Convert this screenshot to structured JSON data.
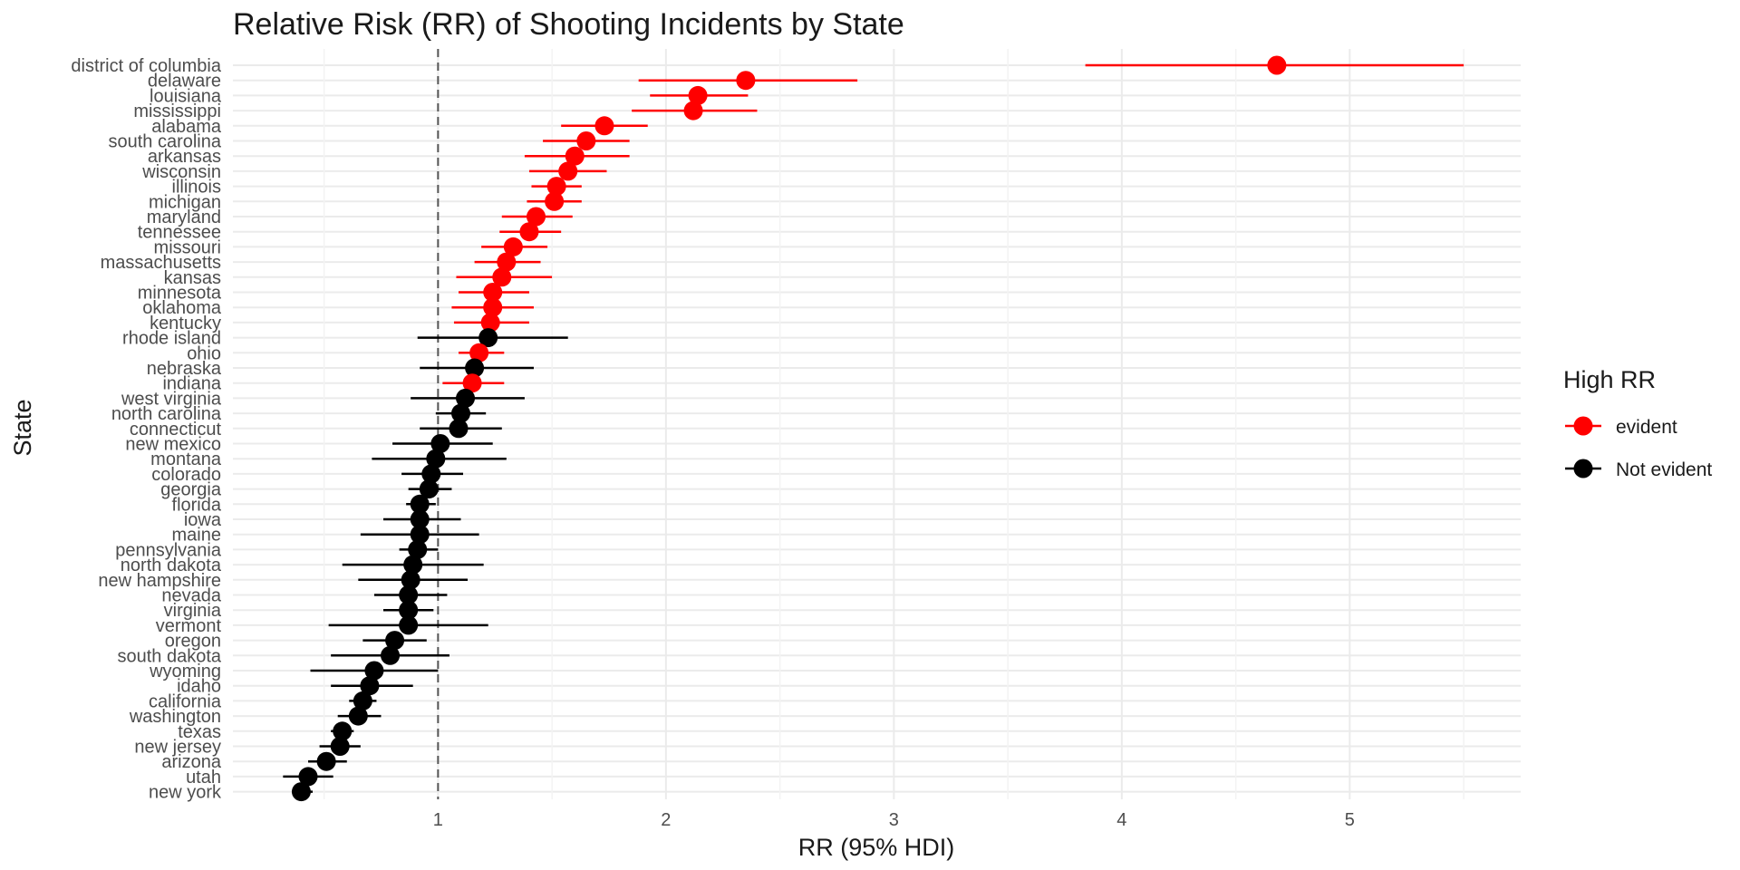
{
  "chart_data": {
    "type": "scatter",
    "title": "Relative Risk (RR) of Shooting Incidents by State",
    "xlabel": "RR (95% HDI)",
    "ylabel": "State",
    "xlim": [
      0.1,
      5.75
    ],
    "x_ticks": [
      1,
      2,
      3,
      4,
      5
    ],
    "reference_line": 1,
    "grid": true,
    "legend": {
      "title": "High RR",
      "placement": "right",
      "entries": [
        {
          "label": "evident",
          "color": "#ff0000"
        },
        {
          "label": "Not evident",
          "color": "#000000"
        }
      ]
    },
    "points": [
      {
        "state": "district of columbia",
        "rr": 4.68,
        "lo": 3.84,
        "hi": 5.5,
        "group": "evident"
      },
      {
        "state": "delaware",
        "rr": 2.35,
        "lo": 1.88,
        "hi": 2.84,
        "group": "evident"
      },
      {
        "state": "louisiana",
        "rr": 2.14,
        "lo": 1.93,
        "hi": 2.36,
        "group": "evident"
      },
      {
        "state": "mississippi",
        "rr": 2.12,
        "lo": 1.85,
        "hi": 2.4,
        "group": "evident"
      },
      {
        "state": "alabama",
        "rr": 1.73,
        "lo": 1.54,
        "hi": 1.92,
        "group": "evident"
      },
      {
        "state": "south carolina",
        "rr": 1.65,
        "lo": 1.46,
        "hi": 1.84,
        "group": "evident"
      },
      {
        "state": "arkansas",
        "rr": 1.6,
        "lo": 1.38,
        "hi": 1.84,
        "group": "evident"
      },
      {
        "state": "wisconsin",
        "rr": 1.57,
        "lo": 1.4,
        "hi": 1.74,
        "group": "evident"
      },
      {
        "state": "illinois",
        "rr": 1.52,
        "lo": 1.41,
        "hi": 1.63,
        "group": "evident"
      },
      {
        "state": "michigan",
        "rr": 1.51,
        "lo": 1.39,
        "hi": 1.63,
        "group": "evident"
      },
      {
        "state": "maryland",
        "rr": 1.43,
        "lo": 1.28,
        "hi": 1.59,
        "group": "evident"
      },
      {
        "state": "tennessee",
        "rr": 1.4,
        "lo": 1.27,
        "hi": 1.54,
        "group": "evident"
      },
      {
        "state": "missouri",
        "rr": 1.33,
        "lo": 1.19,
        "hi": 1.48,
        "group": "evident"
      },
      {
        "state": "massachusetts",
        "rr": 1.3,
        "lo": 1.16,
        "hi": 1.45,
        "group": "evident"
      },
      {
        "state": "kansas",
        "rr": 1.28,
        "lo": 1.08,
        "hi": 1.5,
        "group": "evident"
      },
      {
        "state": "minnesota",
        "rr": 1.24,
        "lo": 1.09,
        "hi": 1.4,
        "group": "evident"
      },
      {
        "state": "oklahoma",
        "rr": 1.24,
        "lo": 1.06,
        "hi": 1.42,
        "group": "evident"
      },
      {
        "state": "kentucky",
        "rr": 1.23,
        "lo": 1.07,
        "hi": 1.4,
        "group": "evident"
      },
      {
        "state": "rhode island",
        "rr": 1.22,
        "lo": 0.91,
        "hi": 1.57,
        "group": "Not evident"
      },
      {
        "state": "ohio",
        "rr": 1.18,
        "lo": 1.09,
        "hi": 1.29,
        "group": "evident"
      },
      {
        "state": "nebraska",
        "rr": 1.16,
        "lo": 0.92,
        "hi": 1.42,
        "group": "Not evident"
      },
      {
        "state": "indiana",
        "rr": 1.15,
        "lo": 1.02,
        "hi": 1.29,
        "group": "evident"
      },
      {
        "state": "west virginia",
        "rr": 1.12,
        "lo": 0.88,
        "hi": 1.38,
        "group": "Not evident"
      },
      {
        "state": "north carolina",
        "rr": 1.1,
        "lo": 0.99,
        "hi": 1.21,
        "group": "Not evident"
      },
      {
        "state": "connecticut",
        "rr": 1.09,
        "lo": 0.92,
        "hi": 1.28,
        "group": "Not evident"
      },
      {
        "state": "new mexico",
        "rr": 1.01,
        "lo": 0.8,
        "hi": 1.24,
        "group": "Not evident"
      },
      {
        "state": "montana",
        "rr": 0.99,
        "lo": 0.71,
        "hi": 1.3,
        "group": "Not evident"
      },
      {
        "state": "colorado",
        "rr": 0.97,
        "lo": 0.84,
        "hi": 1.11,
        "group": "Not evident"
      },
      {
        "state": "georgia",
        "rr": 0.96,
        "lo": 0.87,
        "hi": 1.06,
        "group": "Not evident"
      },
      {
        "state": "florida",
        "rr": 0.92,
        "lo": 0.86,
        "hi": 0.99,
        "group": "Not evident"
      },
      {
        "state": "iowa",
        "rr": 0.92,
        "lo": 0.76,
        "hi": 1.1,
        "group": "Not evident"
      },
      {
        "state": "maine",
        "rr": 0.92,
        "lo": 0.66,
        "hi": 1.18,
        "group": "Not evident"
      },
      {
        "state": "pennsylvania",
        "rr": 0.91,
        "lo": 0.83,
        "hi": 1.0,
        "group": "Not evident"
      },
      {
        "state": "north dakota",
        "rr": 0.89,
        "lo": 0.58,
        "hi": 1.2,
        "group": "Not evident"
      },
      {
        "state": "new hampshire",
        "rr": 0.88,
        "lo": 0.65,
        "hi": 1.13,
        "group": "Not evident"
      },
      {
        "state": "nevada",
        "rr": 0.87,
        "lo": 0.72,
        "hi": 1.04,
        "group": "Not evident"
      },
      {
        "state": "virginia",
        "rr": 0.87,
        "lo": 0.76,
        "hi": 0.98,
        "group": "Not evident"
      },
      {
        "state": "vermont",
        "rr": 0.87,
        "lo": 0.52,
        "hi": 1.22,
        "group": "Not evident"
      },
      {
        "state": "oregon",
        "rr": 0.81,
        "lo": 0.67,
        "hi": 0.95,
        "group": "Not evident"
      },
      {
        "state": "south dakota",
        "rr": 0.79,
        "lo": 0.53,
        "hi": 1.05,
        "group": "Not evident"
      },
      {
        "state": "wyoming",
        "rr": 0.72,
        "lo": 0.44,
        "hi": 1.0,
        "group": "Not evident"
      },
      {
        "state": "idaho",
        "rr": 0.7,
        "lo": 0.53,
        "hi": 0.89,
        "group": "Not evident"
      },
      {
        "state": "california",
        "rr": 0.67,
        "lo": 0.61,
        "hi": 0.73,
        "group": "Not evident"
      },
      {
        "state": "washington",
        "rr": 0.65,
        "lo": 0.56,
        "hi": 0.75,
        "group": "Not evident"
      },
      {
        "state": "texas",
        "rr": 0.58,
        "lo": 0.53,
        "hi": 0.63,
        "group": "Not evident"
      },
      {
        "state": "new jersey",
        "rr": 0.57,
        "lo": 0.48,
        "hi": 0.66,
        "group": "Not evident"
      },
      {
        "state": "arizona",
        "rr": 0.51,
        "lo": 0.43,
        "hi": 0.6,
        "group": "Not evident"
      },
      {
        "state": "utah",
        "rr": 0.43,
        "lo": 0.32,
        "hi": 0.54,
        "group": "Not evident"
      },
      {
        "state": "new york",
        "rr": 0.4,
        "lo": 0.36,
        "hi": 0.45,
        "group": "Not evident"
      }
    ]
  }
}
